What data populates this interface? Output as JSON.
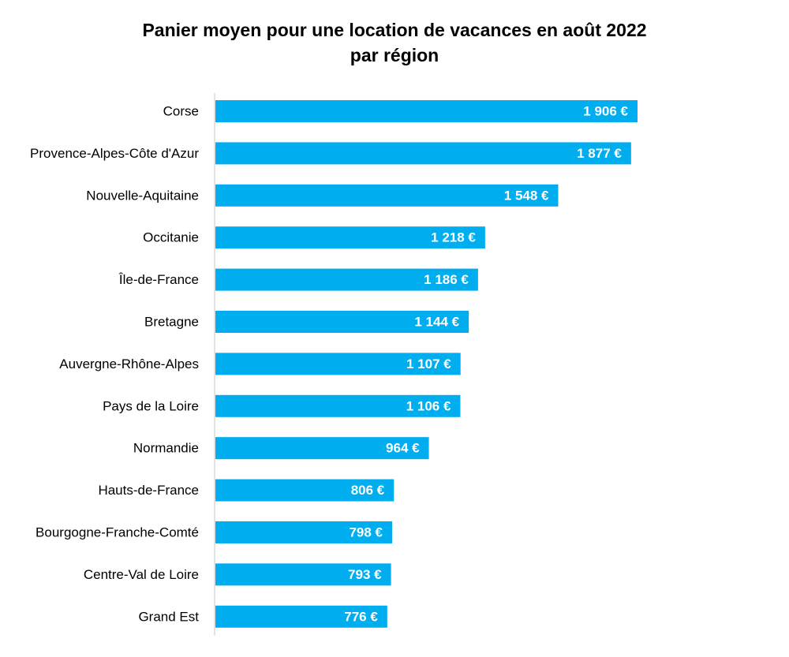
{
  "chart_data": {
    "type": "bar",
    "orientation": "horizontal",
    "title_line1": "Panier moyen pour une location de vacances en août 2022",
    "title_line2": "par région",
    "categories": [
      "Corse",
      "Provence-Alpes-Côte d'Azur",
      "Nouvelle-Aquitaine",
      "Occitanie",
      "Île-de-France",
      "Bretagne",
      "Auvergne-Rhône-Alpes",
      "Pays de la Loire",
      "Normandie",
      "Hauts-de-France",
      "Bourgogne-Franche-Comté",
      "Centre-Val de Loire",
      "Grand Est"
    ],
    "values": [
      1906,
      1877,
      1548,
      1218,
      1186,
      1144,
      1107,
      1106,
      964,
      806,
      798,
      793,
      776
    ],
    "value_labels": [
      "1 906 €",
      "1 877 €",
      "1 548 €",
      "1 218 €",
      "1 186 €",
      "1 144 €",
      "1 107 €",
      "1 106 €",
      "964 €",
      "806 €",
      "798 €",
      "793 €",
      "776 €"
    ],
    "xlim": [
      0,
      1906
    ],
    "grid": false,
    "legend": "none",
    "bar_color": "#00AEEF",
    "axis_color": "#D9D9D9",
    "data_label_color": "#FFFFFF"
  }
}
